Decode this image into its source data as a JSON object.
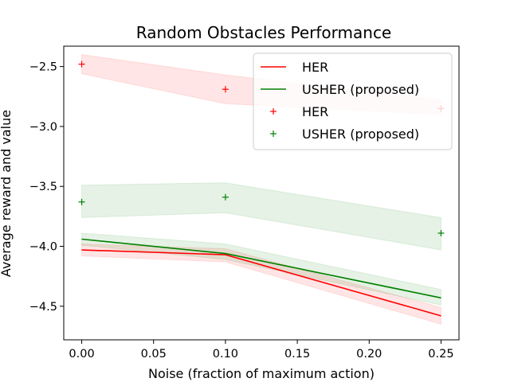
{
  "chart_data": {
    "type": "line",
    "title": "Random Obstacles Performance",
    "xlabel": "Noise (fraction of maximum action)",
    "ylabel": "Average reward and value",
    "xlim": [
      -0.0125,
      0.2625
    ],
    "ylim": [
      -4.78,
      -2.33
    ],
    "x_ticks": [
      0.0,
      0.05,
      0.1,
      0.15,
      0.2,
      0.25
    ],
    "x_tick_labels": [
      "0.00",
      "0.05",
      "0.10",
      "0.15",
      "0.20",
      "0.25"
    ],
    "y_ticks": [
      -2.5,
      -3.0,
      -3.5,
      -4.0,
      -4.5
    ],
    "y_tick_labels": [
      "−2.5",
      "−3.0",
      "−3.5",
      "−4.0",
      "−4.5"
    ],
    "legend_position": "top-right",
    "x": [
      0.0,
      0.1,
      0.25
    ],
    "series": [
      {
        "name": "HER",
        "kind": "line",
        "color": "#ff0000",
        "values": [
          -4.03,
          -4.07,
          -4.58
        ],
        "band_low": [
          -4.08,
          -4.13,
          -4.65
        ],
        "band_high": [
          -3.98,
          -4.02,
          -4.51
        ]
      },
      {
        "name": "USHER (proposed)",
        "kind": "line",
        "color": "#008000",
        "values": [
          -3.94,
          -4.06,
          -4.43
        ],
        "band_low": [
          -3.99,
          -4.11,
          -4.49
        ],
        "band_high": [
          -3.89,
          -3.98,
          -4.36
        ]
      },
      {
        "name": "HER",
        "kind": "marker",
        "color": "#ff0000",
        "values": [
          -2.48,
          -2.69,
          -2.85
        ],
        "band_low": [
          -2.56,
          -2.81,
          -2.9
        ],
        "band_high": [
          -2.4,
          -2.57,
          -2.78
        ]
      },
      {
        "name": "USHER (proposed)",
        "kind": "marker",
        "color": "#008000",
        "values": [
          -3.63,
          -3.59,
          -3.89
        ],
        "band_low": [
          -3.76,
          -3.72,
          -4.03
        ],
        "band_high": [
          -3.49,
          -3.47,
          -3.76
        ]
      }
    ]
  }
}
